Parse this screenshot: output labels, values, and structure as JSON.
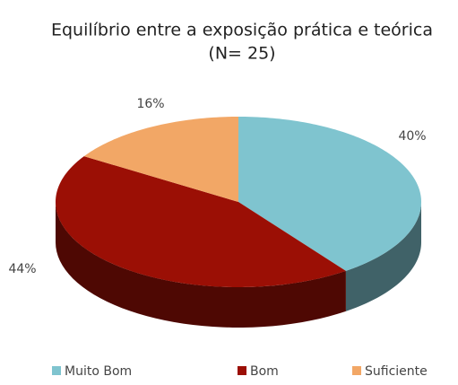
{
  "chart_data": {
    "type": "pie",
    "title": "Equilíbrio entre a exposição prática e teórica",
    "subtitle": "(N= 25)",
    "categories": [
      "Muito Bom",
      "Bom",
      "Suficiente"
    ],
    "values": [
      40,
      44,
      16
    ],
    "value_labels": [
      "40%",
      "44%",
      "16%"
    ],
    "colors": [
      "#7fc4cf",
      "#9b0f05",
      "#f2a766"
    ],
    "legend": "bottom"
  }
}
